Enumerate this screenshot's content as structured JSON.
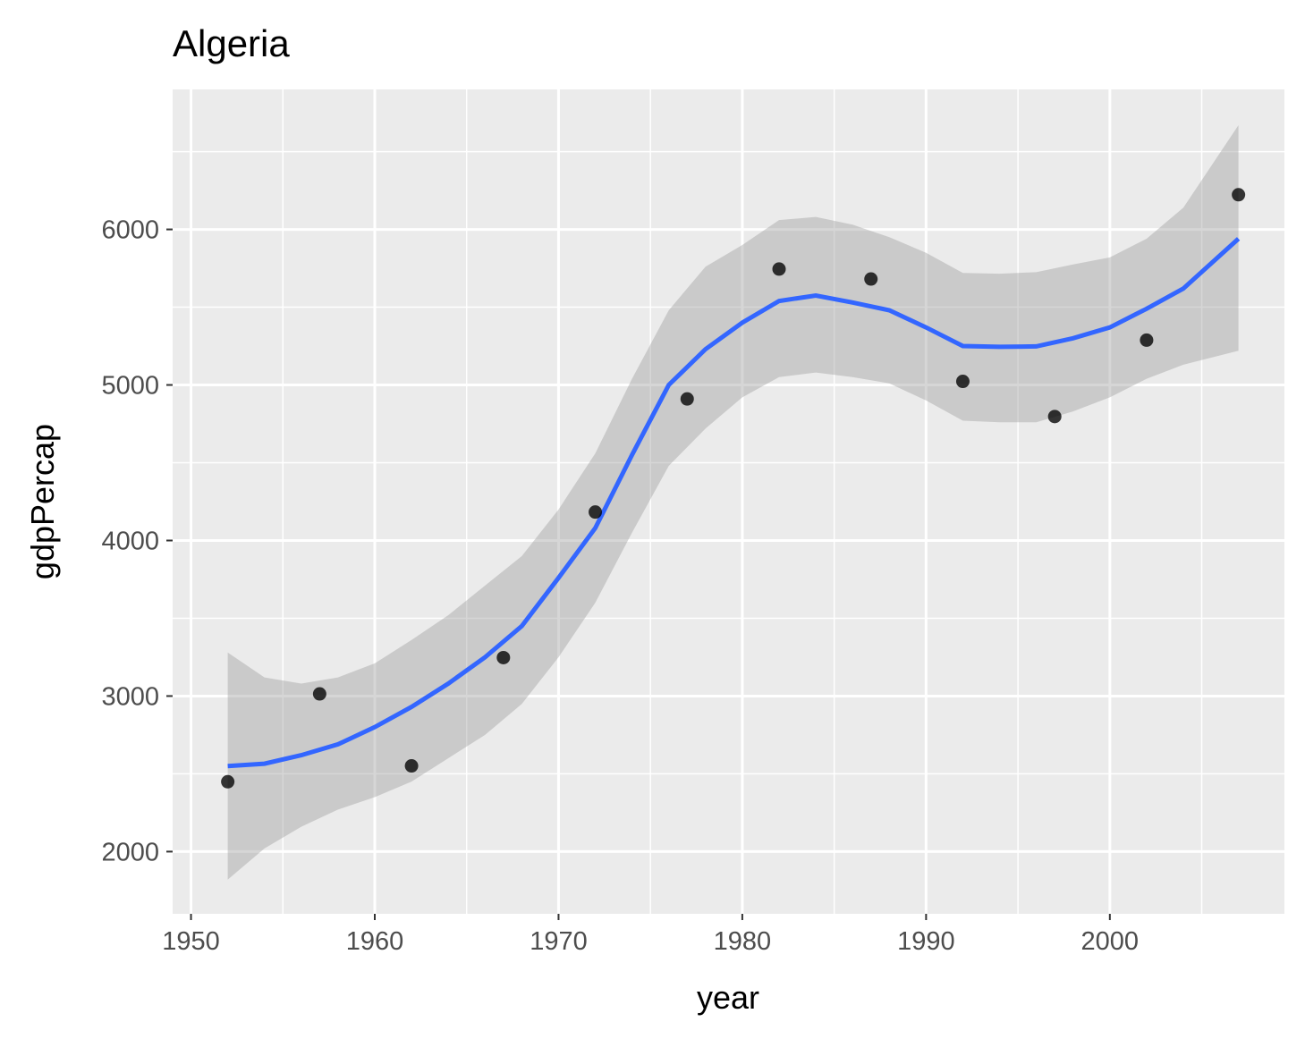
{
  "chart_data": {
    "type": "scatter",
    "title": "Algeria",
    "xlabel": "year",
    "ylabel": "gdpPercap",
    "xlim": [
      1949,
      2009.5
    ],
    "ylim": [
      1600,
      6900
    ],
    "x_ticks": [
      1950,
      1960,
      1970,
      1980,
      1990,
      2000
    ],
    "y_ticks": [
      2000,
      3000,
      4000,
      5000,
      6000
    ],
    "grid": true,
    "points": [
      {
        "x": 1952,
        "y": 2449
      },
      {
        "x": 1957,
        "y": 3014
      },
      {
        "x": 1962,
        "y": 2551
      },
      {
        "x": 1967,
        "y": 3247
      },
      {
        "x": 1972,
        "y": 4183
      },
      {
        "x": 1977,
        "y": 4910
      },
      {
        "x": 1982,
        "y": 5745
      },
      {
        "x": 1987,
        "y": 5681
      },
      {
        "x": 1992,
        "y": 5023
      },
      {
        "x": 1997,
        "y": 4797
      },
      {
        "x": 2002,
        "y": 5288
      },
      {
        "x": 2007,
        "y": 6223
      }
    ],
    "smooth": {
      "x": [
        1952,
        1954,
        1956,
        1958,
        1960,
        1962,
        1964,
        1966,
        1968,
        1970,
        1972,
        1974,
        1976,
        1978,
        1980,
        1982,
        1984,
        1986,
        1988,
        1990,
        1992,
        1994,
        1996,
        1998,
        2000,
        2002,
        2004,
        2007
      ],
      "y": [
        2550,
        2565,
        2620,
        2690,
        2800,
        2930,
        3080,
        3250,
        3450,
        3760,
        4080,
        4550,
        5000,
        5230,
        5400,
        5540,
        5575,
        5530,
        5480,
        5370,
        5250,
        5245,
        5248,
        5300,
        5370,
        5490,
        5620,
        5940
      ],
      "lower": [
        1820,
        2020,
        2160,
        2270,
        2350,
        2450,
        2600,
        2750,
        2950,
        3250,
        3600,
        4050,
        4480,
        4720,
        4920,
        5050,
        5080,
        5050,
        5010,
        4900,
        4770,
        4760,
        4760,
        4830,
        4920,
        5040,
        5130,
        5220
      ],
      "upper": [
        3280,
        3120,
        3080,
        3120,
        3210,
        3360,
        3520,
        3710,
        3900,
        4200,
        4560,
        5040,
        5480,
        5760,
        5900,
        6060,
        6080,
        6030,
        5950,
        5850,
        5720,
        5715,
        5725,
        5775,
        5820,
        5940,
        6140,
        6670
      ]
    }
  }
}
